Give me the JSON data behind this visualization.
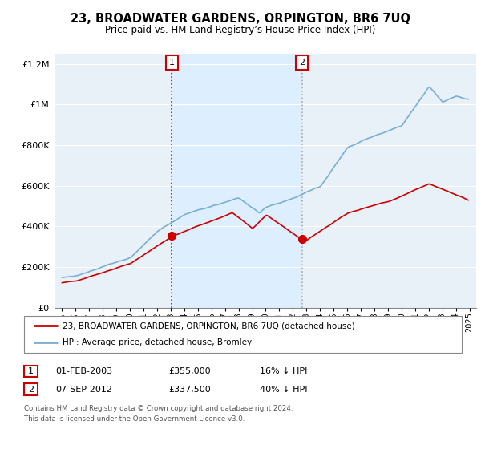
{
  "title": "23, BROADWATER GARDENS, ORPINGTON, BR6 7UQ",
  "subtitle": "Price paid vs. HM Land Registry’s House Price Index (HPI)",
  "legend_line1": "23, BROADWATER GARDENS, ORPINGTON, BR6 7UQ (detached house)",
  "legend_line2": "HPI: Average price, detached house, Bromley",
  "sale1_date": "01-FEB-2003",
  "sale1_price": "£355,000",
  "sale1_hpi": "16% ↓ HPI",
  "sale2_date": "07-SEP-2012",
  "sale2_price": "£337,500",
  "sale2_hpi": "40% ↓ HPI",
  "footer": "Contains HM Land Registry data © Crown copyright and database right 2024.\nThis data is licensed under the Open Government Licence v3.0.",
  "sale1_year": 2003.08,
  "sale1_value": 355000,
  "sale2_year": 2012.67,
  "sale2_value": 337500,
  "red_color": "#cc0000",
  "blue_color": "#7aaed4",
  "highlight_color": "#ddeeff",
  "background_color": "#e8f0f8",
  "plot_bg": "#ffffff",
  "vline1_color": "#cc0000",
  "vline2_color": "#aaaaaa",
  "ylim": [
    0,
    1250000
  ],
  "xlim_start": 1994.5,
  "xlim_end": 2025.5
}
